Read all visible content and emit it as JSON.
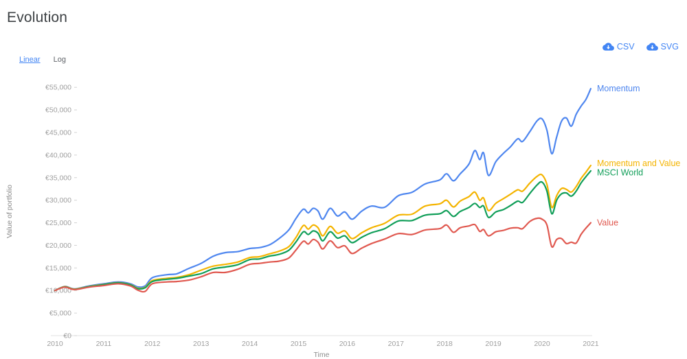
{
  "page": {
    "title": "Evolution"
  },
  "toolbar": {
    "scale": [
      {
        "label": "Linear",
        "active": true
      },
      {
        "label": "Log",
        "active": false
      }
    ],
    "export": [
      {
        "label": "CSV",
        "icon": "cloud-download"
      },
      {
        "label": "SVG",
        "icon": "cloud-download"
      }
    ]
  },
  "colors": {
    "accent_blue": "#4285f4",
    "title_text": "#3c4043",
    "muted_text": "#5f6368",
    "tick_text": "#9e9e9e",
    "axis_line": "#e0e0e0",
    "tick_mark": "#d2d2d2"
  },
  "chart_data": {
    "type": "line",
    "title": "Evolution",
    "xlabel": "Time",
    "ylabel": "Value of portfolio",
    "xlim": [
      2010,
      2021
    ],
    "ylim": [
      0,
      55000
    ],
    "grid": false,
    "legend_position": "line-end-labels-right",
    "x_tick_values": [
      2010,
      2011,
      2012,
      2013,
      2014,
      2015,
      2016,
      2017,
      2018,
      2019,
      2020,
      2021
    ],
    "x_tick_labels": [
      "2010",
      "2011",
      "2012",
      "2013",
      "2014",
      "2015",
      "2016",
      "2017",
      "2018",
      "2019",
      "2020",
      "2021"
    ],
    "y_tick_values": [
      0,
      5000,
      10000,
      15000,
      20000,
      25000,
      30000,
      35000,
      40000,
      45000,
      50000,
      55000
    ],
    "y_tick_labels": [
      "€0",
      "€5,000",
      "€10,000",
      "€15,000",
      "€20,000",
      "€25,000",
      "€30,000",
      "€35,000",
      "€40,000",
      "€45,000",
      "€50,000",
      "€55,000"
    ],
    "x": [
      2010.0,
      2010.2,
      2010.4,
      2010.7,
      2011.0,
      2011.3,
      2011.55,
      2011.7,
      2011.85,
      2012.0,
      2012.3,
      2012.5,
      2012.75,
      2013.0,
      2013.25,
      2013.5,
      2013.75,
      2014.0,
      2014.2,
      2014.4,
      2014.6,
      2014.8,
      2014.95,
      2015.1,
      2015.2,
      2015.3,
      2015.4,
      2015.5,
      2015.65,
      2015.8,
      2015.95,
      2016.1,
      2016.3,
      2016.5,
      2016.77,
      2017.05,
      2017.33,
      2017.6,
      2017.9,
      2018.04,
      2018.18,
      2018.32,
      2018.5,
      2018.62,
      2018.72,
      2018.8,
      2018.9,
      2019.05,
      2019.2,
      2019.35,
      2019.5,
      2019.6,
      2019.75,
      2019.9,
      2020.0,
      2020.1,
      2020.2,
      2020.3,
      2020.4,
      2020.5,
      2020.6,
      2020.7,
      2020.8,
      2020.9,
      2021.0
    ],
    "series": [
      {
        "name": "Momentum",
        "color": "#4e86ef",
        "values": [
          10000,
          10900,
          10350,
          11000,
          11500,
          11900,
          11500,
          10800,
          11000,
          12850,
          13500,
          13700,
          14900,
          16000,
          17600,
          18400,
          18600,
          19300,
          19500,
          20100,
          21500,
          23400,
          26000,
          28000,
          27200,
          28200,
          27600,
          25800,
          28200,
          26500,
          27400,
          25800,
          27600,
          28700,
          28450,
          31000,
          31750,
          33600,
          34500,
          35850,
          34300,
          35850,
          38000,
          41000,
          39000,
          40500,
          35500,
          38500,
          40300,
          41800,
          43600,
          43000,
          45200,
          47600,
          48000,
          45500,
          40300,
          44000,
          47500,
          48200,
          46400,
          49000,
          50800,
          52300,
          54700
        ]
      },
      {
        "name": "Momentum and Value",
        "color": "#f4b400",
        "values": [
          10000,
          10850,
          10300,
          10900,
          11350,
          11750,
          11300,
          10500,
          10700,
          12200,
          12700,
          12900,
          13500,
          14500,
          15400,
          15800,
          16300,
          17300,
          17500,
          18100,
          18700,
          19700,
          21800,
          24400,
          23600,
          24500,
          23900,
          22100,
          24200,
          22700,
          23200,
          21500,
          22800,
          23900,
          24900,
          26700,
          26900,
          28700,
          29200,
          30000,
          28500,
          29800,
          30800,
          31800,
          30000,
          30500,
          27700,
          29300,
          30300,
          31300,
          32300,
          32000,
          33800,
          35300,
          35600,
          33500,
          28400,
          31000,
          32600,
          32400,
          31800,
          33000,
          34800,
          36200,
          37700
        ]
      },
      {
        "name": "MSCI World",
        "color": "#109e58",
        "values": [
          10000,
          10800,
          10250,
          10850,
          11300,
          11700,
          11250,
          10400,
          10600,
          12000,
          12500,
          12700,
          13200,
          13750,
          14800,
          15200,
          15700,
          16850,
          17000,
          17600,
          18000,
          18900,
          20800,
          23000,
          22400,
          23200,
          22700,
          21000,
          23000,
          21600,
          22100,
          20600,
          21800,
          22800,
          23700,
          25400,
          25500,
          26700,
          27000,
          27700,
          26400,
          27500,
          28400,
          29300,
          28400,
          28700,
          26200,
          27400,
          27900,
          28800,
          29800,
          29500,
          31500,
          33400,
          34000,
          32000,
          27000,
          30000,
          31400,
          31600,
          30900,
          32000,
          33800,
          35200,
          36500
        ]
      },
      {
        "name": "Value",
        "color": "#e0584f",
        "values": [
          10000,
          10750,
          10200,
          10750,
          11100,
          11500,
          11000,
          10100,
          9800,
          11500,
          11900,
          12000,
          12300,
          13050,
          14000,
          14000,
          14700,
          15800,
          16000,
          16300,
          16500,
          17200,
          19000,
          20900,
          20300,
          21300,
          20700,
          19200,
          21000,
          19500,
          19900,
          18200,
          19400,
          20400,
          21400,
          22600,
          22400,
          23400,
          23700,
          24500,
          22900,
          23900,
          24300,
          24600,
          23100,
          23500,
          22100,
          23000,
          23300,
          23800,
          23900,
          23700,
          25300,
          26000,
          25800,
          24500,
          19700,
          21300,
          21500,
          20400,
          20700,
          20500,
          22400,
          23800,
          25000
        ]
      }
    ]
  }
}
